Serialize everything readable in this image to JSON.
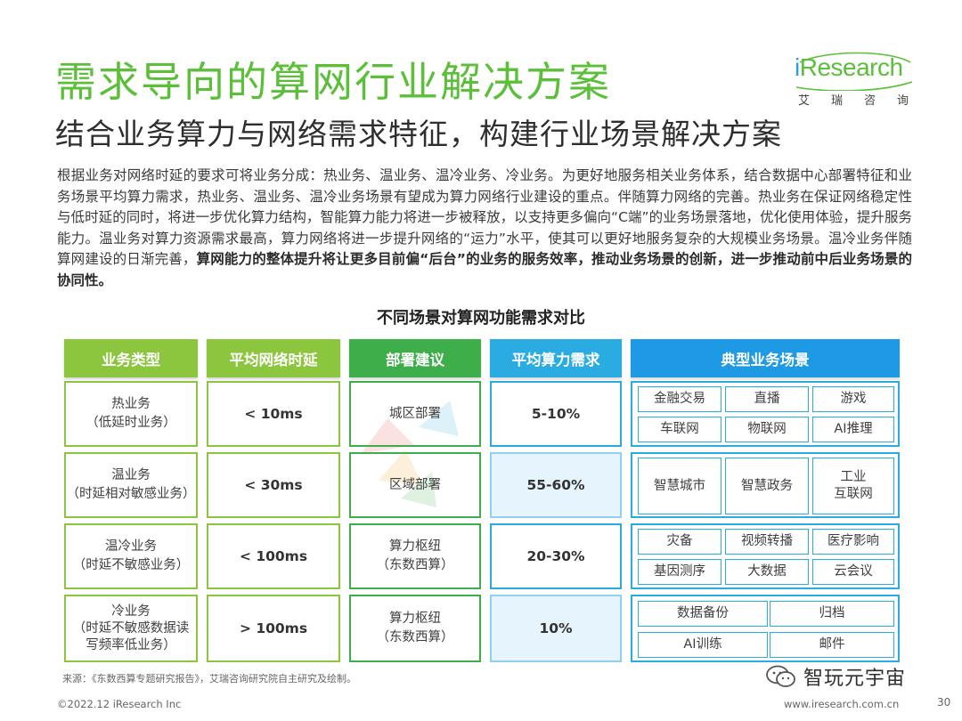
{
  "header": {
    "title": "需求导向的算网行业解决方案",
    "subtitle": "结合业务算力与网络需求特征，构建行业场景解决方案"
  },
  "logo": {
    "word_prefix": "i",
    "word_main": "Research",
    "chinese": "艾瑞咨询"
  },
  "body": {
    "paragraph_normal": "根据业务对网络时延的要求可将业务分成：热业务、温业务、温冷业务、冷业务。为更好地服务相关业务体系，结合数据中心部署特征和业务场景平均算力需求，热业务、温业务、温冷业务场景有望成为算力网络行业建设的重点。伴随算力网络的完善。热业务在保证网络稳定性与低时延的同时，将进一步优化算力结构，智能算力能力将进一步被释放，以支持更多偏向“C端”的业务场景落地，优化使用体验，提升服务能力。温业务对算力资源需求最高，算力网络将进一步提升网络的“运力”水平，使其可以更好地服务复杂的大规模业务场景。温冷业务伴随算网建设的日渐完善，",
    "paragraph_bold": "算网能力的整体提升将让更多目前偏“后台”的业务的服务效率，推动业务场景的创新，进一步推动前中后业务场景的协同性。"
  },
  "table": {
    "title": "不同场景对算网功能需求对比",
    "headers": [
      "业务类型",
      "平均网络时延",
      "部署建议",
      "平均算力需求",
      "典型业务场景"
    ],
    "rows": [
      {
        "type_line1": "热业务",
        "type_line2": "（低延时业务）",
        "type_line3": "",
        "latency": "< 10ms",
        "deploy_line1": "城区部署",
        "deploy_line2": "",
        "compute": "5-10%",
        "scenarios": [
          "金融交易",
          "直播",
          "游戏",
          "车联网",
          "物联网",
          "AI推理"
        ]
      },
      {
        "type_line1": "温业务",
        "type_line2": "（时延相对敏感业务）",
        "type_line3": "",
        "latency": "< 30ms",
        "deploy_line1": "区域部署",
        "deploy_line2": "",
        "compute": "55-60%",
        "scenarios": [
          "智慧城市",
          "智慧政务",
          "工业\n互联网"
        ]
      },
      {
        "type_line1": "温冷业务",
        "type_line2": "（时延不敏感业务）",
        "type_line3": "",
        "latency": "< 100ms",
        "deploy_line1": "算力枢纽",
        "deploy_line2": "（东数西算）",
        "compute": "20-30%",
        "scenarios": [
          "灾备",
          "视频转播",
          "医疗影响",
          "基因测序",
          "大数据",
          "云会议"
        ]
      },
      {
        "type_line1": "冷业务",
        "type_line2": "（时延不敏感数据读",
        "type_line3": "写频率低业务）",
        "latency": "> 100ms",
        "deploy_line1": "算力枢纽",
        "deploy_line2": "（东数西算）",
        "compute": "10%",
        "scenarios": [
          "数据备份",
          "归档",
          "AI训练",
          "邮件"
        ]
      }
    ]
  },
  "footer": {
    "source": "来源：《东数西算专题研究报告》，艾瑞咨询研究院自主研究及绘制。",
    "copyright": "©2022.12 iResearch Inc",
    "website": "www.iresearch.com.cn",
    "page": "30",
    "wechat_name": "智玩元宇宙"
  },
  "colors": {
    "title_green": "#5cbf3a",
    "header_light_green": "#8cc63f",
    "header_green": "#3dae49",
    "header_blue": "#2aace2",
    "header_deep_blue": "#1d9ae3",
    "shaded_cell": "#e6f5fd"
  },
  "icons": [
    "wechat-icon",
    "iresearch-swoosh-icon"
  ]
}
